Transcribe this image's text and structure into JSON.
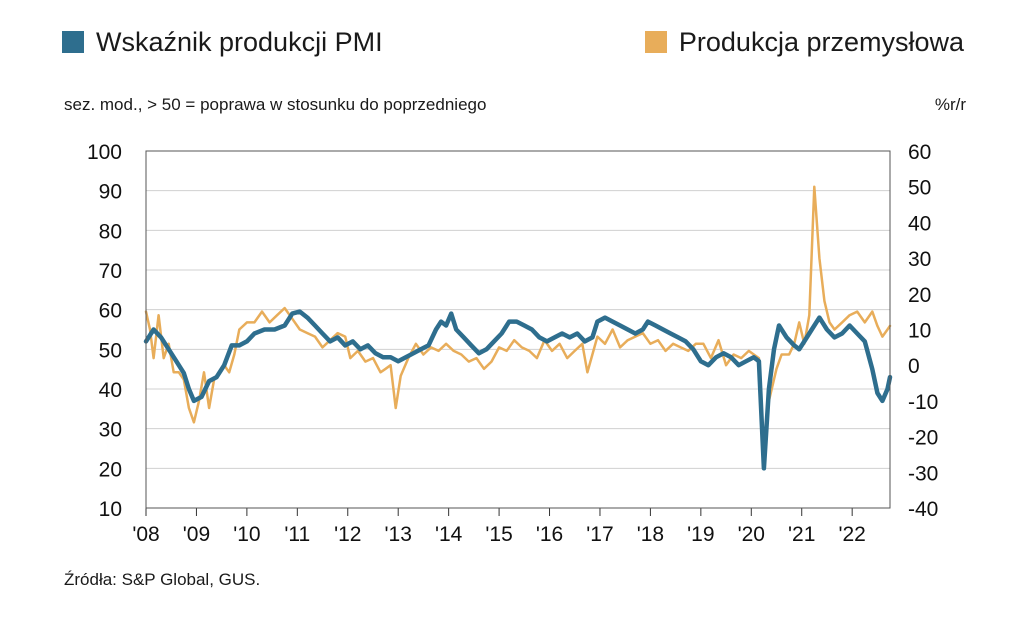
{
  "legend": {
    "series1": {
      "label": "Wskaźnik produkcji PMI",
      "color": "#2e6e8e"
    },
    "series2": {
      "label": "Produkcja przemysłowa",
      "color": "#e8ad5a"
    }
  },
  "subtitle": "sez. mod., > 50 = poprawa w stosunku do poprzedniego",
  "unit_right": "%r/r",
  "source": "Źródła:  S&P Global, GUS.",
  "chart_data": {
    "type": "line",
    "x_start_year": 2008,
    "x_end_year": 2022.75,
    "x_ticks": [
      "'08",
      "'09",
      "'10",
      "'11",
      "'12",
      "'13",
      "'14",
      "'15",
      "'16",
      "'17",
      "'18",
      "'19",
      "'20",
      "'21",
      "'22"
    ],
    "y_left": {
      "ticks": [
        100,
        90,
        80,
        70,
        60,
        50,
        40,
        30,
        20,
        10
      ],
      "lim": [
        10,
        100
      ]
    },
    "y_right": {
      "ticks": [
        60,
        50,
        40,
        30,
        20,
        10,
        0,
        -10,
        -20,
        -30,
        -40
      ],
      "lim": [
        -40,
        60
      ]
    },
    "grid": true,
    "series": [
      {
        "name": "Wskaźnik produkcji PMI",
        "axis": "left",
        "color": "#2e6e8e",
        "points": [
          [
            2008.0,
            52
          ],
          [
            2008.15,
            55
          ],
          [
            2008.3,
            53
          ],
          [
            2008.45,
            50
          ],
          [
            2008.6,
            47
          ],
          [
            2008.75,
            44
          ],
          [
            2008.85,
            40
          ],
          [
            2008.95,
            37
          ],
          [
            2009.1,
            38
          ],
          [
            2009.25,
            42
          ],
          [
            2009.4,
            43
          ],
          [
            2009.55,
            46
          ],
          [
            2009.7,
            51
          ],
          [
            2009.85,
            51
          ],
          [
            2010.0,
            52
          ],
          [
            2010.15,
            54
          ],
          [
            2010.35,
            55
          ],
          [
            2010.55,
            55
          ],
          [
            2010.75,
            56
          ],
          [
            2010.9,
            59
          ],
          [
            2011.05,
            59.5
          ],
          [
            2011.2,
            58
          ],
          [
            2011.35,
            56
          ],
          [
            2011.5,
            54
          ],
          [
            2011.65,
            52
          ],
          [
            2011.8,
            53
          ],
          [
            2011.95,
            51
          ],
          [
            2012.1,
            52
          ],
          [
            2012.25,
            50
          ],
          [
            2012.4,
            51
          ],
          [
            2012.55,
            49
          ],
          [
            2012.7,
            48
          ],
          [
            2012.85,
            48
          ],
          [
            2013.0,
            47
          ],
          [
            2013.15,
            48
          ],
          [
            2013.3,
            49
          ],
          [
            2013.45,
            50
          ],
          [
            2013.6,
            51
          ],
          [
            2013.75,
            55
          ],
          [
            2013.85,
            57
          ],
          [
            2013.95,
            56
          ],
          [
            2014.05,
            59
          ],
          [
            2014.15,
            55
          ],
          [
            2014.3,
            53
          ],
          [
            2014.45,
            51
          ],
          [
            2014.6,
            49
          ],
          [
            2014.75,
            50
          ],
          [
            2014.9,
            52
          ],
          [
            2015.05,
            54
          ],
          [
            2015.2,
            57
          ],
          [
            2015.35,
            57
          ],
          [
            2015.5,
            56
          ],
          [
            2015.65,
            55
          ],
          [
            2015.8,
            53
          ],
          [
            2015.95,
            52
          ],
          [
            2016.1,
            53
          ],
          [
            2016.25,
            54
          ],
          [
            2016.4,
            53
          ],
          [
            2016.55,
            54
          ],
          [
            2016.7,
            52
          ],
          [
            2016.85,
            53
          ],
          [
            2016.95,
            57
          ],
          [
            2017.1,
            58
          ],
          [
            2017.25,
            57
          ],
          [
            2017.4,
            56
          ],
          [
            2017.55,
            55
          ],
          [
            2017.7,
            54
          ],
          [
            2017.85,
            55
          ],
          [
            2017.95,
            57
          ],
          [
            2018.1,
            56
          ],
          [
            2018.25,
            55
          ],
          [
            2018.4,
            54
          ],
          [
            2018.55,
            53
          ],
          [
            2018.7,
            52
          ],
          [
            2018.85,
            50
          ],
          [
            2019.0,
            47
          ],
          [
            2019.15,
            46
          ],
          [
            2019.3,
            48
          ],
          [
            2019.45,
            49
          ],
          [
            2019.6,
            48
          ],
          [
            2019.75,
            46
          ],
          [
            2019.9,
            47
          ],
          [
            2020.05,
            48
          ],
          [
            2020.15,
            47
          ],
          [
            2020.25,
            20
          ],
          [
            2020.35,
            40
          ],
          [
            2020.45,
            50
          ],
          [
            2020.55,
            56
          ],
          [
            2020.7,
            53
          ],
          [
            2020.85,
            51
          ],
          [
            2020.95,
            50
          ],
          [
            2021.05,
            52
          ],
          [
            2021.2,
            55
          ],
          [
            2021.35,
            58
          ],
          [
            2021.5,
            55
          ],
          [
            2021.65,
            53
          ],
          [
            2021.8,
            54
          ],
          [
            2021.95,
            56
          ],
          [
            2022.1,
            54
          ],
          [
            2022.25,
            52
          ],
          [
            2022.4,
            45
          ],
          [
            2022.5,
            39
          ],
          [
            2022.6,
            37
          ],
          [
            2022.7,
            40
          ],
          [
            2022.75,
            43
          ]
        ]
      },
      {
        "name": "Produkcja przemysłowa",
        "axis": "right",
        "color": "#e8ad5a",
        "points": [
          [
            2008.0,
            15
          ],
          [
            2008.08,
            10
          ],
          [
            2008.15,
            2
          ],
          [
            2008.25,
            14
          ],
          [
            2008.35,
            2
          ],
          [
            2008.45,
            6
          ],
          [
            2008.55,
            -2
          ],
          [
            2008.65,
            -2
          ],
          [
            2008.75,
            -4
          ],
          [
            2008.85,
            -12
          ],
          [
            2008.95,
            -16
          ],
          [
            2009.05,
            -10
          ],
          [
            2009.15,
            -2
          ],
          [
            2009.25,
            -12
          ],
          [
            2009.35,
            -4
          ],
          [
            2009.45,
            -2
          ],
          [
            2009.55,
            0
          ],
          [
            2009.65,
            -2
          ],
          [
            2009.75,
            3
          ],
          [
            2009.85,
            10
          ],
          [
            2010.0,
            12
          ],
          [
            2010.15,
            12
          ],
          [
            2010.3,
            15
          ],
          [
            2010.45,
            12
          ],
          [
            2010.6,
            14
          ],
          [
            2010.75,
            16
          ],
          [
            2010.9,
            13
          ],
          [
            2011.05,
            10
          ],
          [
            2011.2,
            9
          ],
          [
            2011.35,
            8
          ],
          [
            2011.5,
            5
          ],
          [
            2011.65,
            7
          ],
          [
            2011.8,
            9
          ],
          [
            2011.95,
            8
          ],
          [
            2012.05,
            2
          ],
          [
            2012.2,
            4
          ],
          [
            2012.35,
            1
          ],
          [
            2012.5,
            2
          ],
          [
            2012.65,
            -2
          ],
          [
            2012.75,
            -1
          ],
          [
            2012.85,
            0
          ],
          [
            2012.95,
            -12
          ],
          [
            2013.05,
            -3
          ],
          [
            2013.2,
            2
          ],
          [
            2013.35,
            6
          ],
          [
            2013.5,
            3
          ],
          [
            2013.65,
            5
          ],
          [
            2013.8,
            4
          ],
          [
            2013.95,
            6
          ],
          [
            2014.1,
            4
          ],
          [
            2014.25,
            3
          ],
          [
            2014.4,
            1
          ],
          [
            2014.55,
            2
          ],
          [
            2014.7,
            -1
          ],
          [
            2014.85,
            1
          ],
          [
            2015.0,
            5
          ],
          [
            2015.15,
            4
          ],
          [
            2015.3,
            7
          ],
          [
            2015.45,
            5
          ],
          [
            2015.6,
            4
          ],
          [
            2015.75,
            2
          ],
          [
            2015.9,
            7
          ],
          [
            2016.05,
            4
          ],
          [
            2016.2,
            6
          ],
          [
            2016.35,
            2
          ],
          [
            2016.5,
            4
          ],
          [
            2016.65,
            6
          ],
          [
            2016.75,
            -2
          ],
          [
            2016.85,
            3
          ],
          [
            2016.95,
            8
          ],
          [
            2017.1,
            6
          ],
          [
            2017.25,
            10
          ],
          [
            2017.4,
            5
          ],
          [
            2017.55,
            7
          ],
          [
            2017.7,
            8
          ],
          [
            2017.85,
            9
          ],
          [
            2018.0,
            6
          ],
          [
            2018.15,
            7
          ],
          [
            2018.3,
            4
          ],
          [
            2018.45,
            6
          ],
          [
            2018.6,
            5
          ],
          [
            2018.75,
            4
          ],
          [
            2018.9,
            6
          ],
          [
            2019.05,
            6
          ],
          [
            2019.2,
            2
          ],
          [
            2019.35,
            7
          ],
          [
            2019.5,
            0
          ],
          [
            2019.65,
            3
          ],
          [
            2019.8,
            2
          ],
          [
            2019.95,
            4
          ],
          [
            2020.05,
            3
          ],
          [
            2020.15,
            2
          ],
          [
            2020.25,
            -28
          ],
          [
            2020.35,
            -10
          ],
          [
            2020.5,
            -1
          ],
          [
            2020.6,
            3
          ],
          [
            2020.75,
            3
          ],
          [
            2020.85,
            6
          ],
          [
            2020.95,
            12
          ],
          [
            2021.05,
            6
          ],
          [
            2021.15,
            14
          ],
          [
            2021.25,
            50
          ],
          [
            2021.35,
            30
          ],
          [
            2021.45,
            18
          ],
          [
            2021.55,
            12
          ],
          [
            2021.65,
            10
          ],
          [
            2021.8,
            12
          ],
          [
            2021.95,
            14
          ],
          [
            2022.1,
            15
          ],
          [
            2022.25,
            12
          ],
          [
            2022.4,
            15
          ],
          [
            2022.5,
            11
          ],
          [
            2022.6,
            8
          ],
          [
            2022.7,
            10
          ],
          [
            2022.75,
            11
          ]
        ]
      }
    ]
  }
}
